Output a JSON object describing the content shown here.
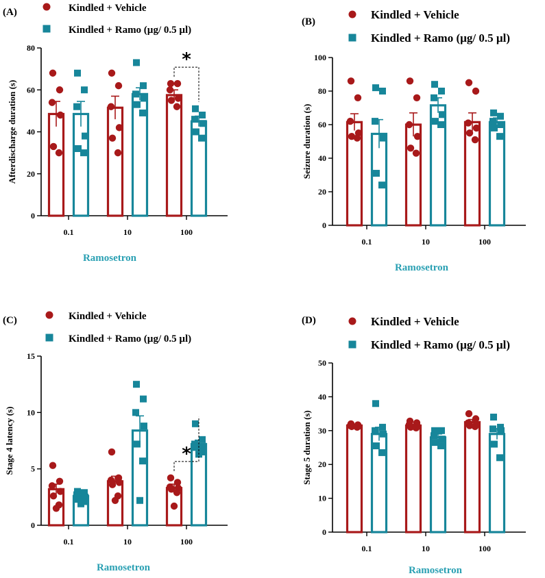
{
  "colors": {
    "vehicle": "#a8191a",
    "ramo": "#17869a",
    "xlabel": "#2aa0b3"
  },
  "legend_entries": [
    "Kindled + Vehicle",
    "Kindled + Ramo (µg/ 0.5 µl)"
  ],
  "chart_data": [
    {
      "panel": "(A)",
      "type": "bar",
      "categories": [
        "0.1",
        "10",
        "100"
      ],
      "xlabel": "Ramosetron",
      "ylabel": "Afterdischarge duration (s)",
      "ylim": [
        0,
        80
      ],
      "yticks": [
        0,
        20,
        40,
        60,
        80
      ],
      "legend": [
        "Kindled + Vehicle",
        "Kindled + Ramo (µg/ 0.5 µl)"
      ],
      "series": [
        {
          "name": "Kindled + Vehicle",
          "values": [
            48.5,
            51.5,
            57.5
          ],
          "sem": [
            6,
            5.5,
            2.5
          ],
          "points": [
            [
              68,
              60,
              54,
              48,
              33,
              30
            ],
            [
              68,
              62,
              52,
              42,
              37,
              30
            ],
            [
              63,
              63,
              60,
              56,
              55,
              52
            ]
          ]
        },
        {
          "name": "Kindled + Ramo (µg/ 0.5 µl)",
          "values": [
            48.5,
            58,
            45
          ],
          "sem": [
            6,
            3,
            2.5
          ],
          "points": [
            [
              68,
              60,
              52,
              38,
              32,
              30
            ],
            [
              73,
              62,
              58,
              56,
              53,
              49
            ],
            [
              51,
              48,
              46,
              44,
              40,
              37
            ]
          ]
        }
      ],
      "annotations": [
        {
          "text": "*",
          "category": "100"
        }
      ]
    },
    {
      "panel": "(B)",
      "type": "bar",
      "categories": [
        "0.1",
        "10",
        "100"
      ],
      "xlabel": "Ramosetron",
      "ylabel": "Seizure duration (s)",
      "ylim": [
        0,
        100
      ],
      "yticks": [
        0,
        20,
        40,
        60,
        80,
        100
      ],
      "legend": [
        "Kindled + Vehicle",
        "Kindled + Ramo (µg/ 0.5 µl)"
      ],
      "series": [
        {
          "name": "Kindled + Vehicle",
          "values": [
            61.5,
            60,
            61.5
          ],
          "sem": [
            5,
            7,
            5.5
          ],
          "points": [
            [
              86,
              76,
              62,
              55,
              53,
              52
            ],
            [
              86,
              76,
              60,
              53,
              46,
              43
            ],
            [
              85,
              80,
              61,
              58,
              55,
              51
            ]
          ]
        },
        {
          "name": "Kindled + Ramo (µg/ 0.5 µl)",
          "values": [
            54.5,
            71.5,
            61.5
          ],
          "sem": [
            8.5,
            4.5,
            2.5
          ],
          "points": [
            [
              82,
              80,
              62,
              52,
              31,
              24
            ],
            [
              84,
              80,
              76,
              66,
              62,
              60
            ],
            [
              67,
              65,
              62,
              60,
              58,
              53
            ]
          ]
        }
      ],
      "annotations": []
    },
    {
      "panel": "(C)",
      "type": "bar",
      "categories": [
        "0.1",
        "10",
        "100"
      ],
      "xlabel": "Ramosetron",
      "ylabel": "Stage 4 latency (s)",
      "ylim": [
        0,
        15
      ],
      "yticks": [
        0,
        5,
        10,
        15
      ],
      "legend": [
        "Kindled + Vehicle",
        "Kindled + Ramo (µg/ 0.5 µl)"
      ],
      "series": [
        {
          "name": "Kindled + Vehicle",
          "values": [
            3.2,
            3.9,
            3.3
          ],
          "sem": [
            0.45,
            0.45,
            0.35
          ],
          "points": [
            [
              5.3,
              3.9,
              3.5,
              3.0,
              2.6,
              1.8,
              1.5
            ],
            [
              6.5,
              4.2,
              4.0,
              3.8,
              3.6,
              2.6,
              2.2
            ],
            [
              4.2,
              3.8,
              3.4,
              3.3,
              3.2,
              2.9,
              1.7
            ]
          ]
        },
        {
          "name": "Kindled + Ramo (µg/ 0.5 µl)",
          "values": [
            2.6,
            8.4,
            7.2
          ],
          "sem": [
            0.25,
            1.3,
            0.35
          ],
          "points": [
            [
              3.0,
              2.9,
              2.7,
              2.5,
              2.3,
              2.1,
              1.9
            ],
            [
              12.5,
              11.2,
              10.0,
              8.8,
              7.2,
              5.7,
              2.2
            ],
            [
              9.0,
              7.6,
              7.2,
              7.0,
              6.9,
              6.5,
              6.3
            ]
          ]
        }
      ],
      "annotations": [
        {
          "text": "*",
          "category": "100"
        }
      ]
    },
    {
      "panel": "(D)",
      "type": "bar",
      "categories": [
        "0.1",
        "10",
        "100"
      ],
      "xlabel": "Ramosetron",
      "ylabel": "Stage 5 duration (s)",
      "ylim": [
        0,
        50
      ],
      "yticks": [
        0,
        10,
        20,
        30,
        40,
        50
      ],
      "legend": [
        "Kindled + Vehicle",
        "Kindled + Ramo (µg/ 0.5 µl)"
      ],
      "series": [
        {
          "name": "Kindled + Vehicle",
          "values": [
            31.5,
            31.5,
            32.5
          ],
          "sem": [
            0.4,
            0.4,
            0.8
          ],
          "points": [
            [
              32,
              31.7,
              31.5,
              31.3,
              31.2,
              31
            ],
            [
              32.8,
              32.3,
              31.8,
              31.3,
              31,
              30.8
            ],
            [
              35,
              33.5,
              32.3,
              31.8,
              31.5,
              31.2
            ]
          ]
        },
        {
          "name": "Kindled + Ramo (µg/ 0.5 µl)",
          "values": [
            29,
            28,
            29
          ],
          "sem": [
            2,
            1,
            1.6
          ],
          "points": [
            [
              38,
              31,
              30,
              29,
              25.5,
              23.5
            ],
            [
              30,
              30,
              28.5,
              27.5,
              26.5,
              25.5
            ],
            [
              34,
              31,
              30.5,
              30,
              26,
              22
            ]
          ]
        }
      ],
      "annotations": []
    }
  ]
}
